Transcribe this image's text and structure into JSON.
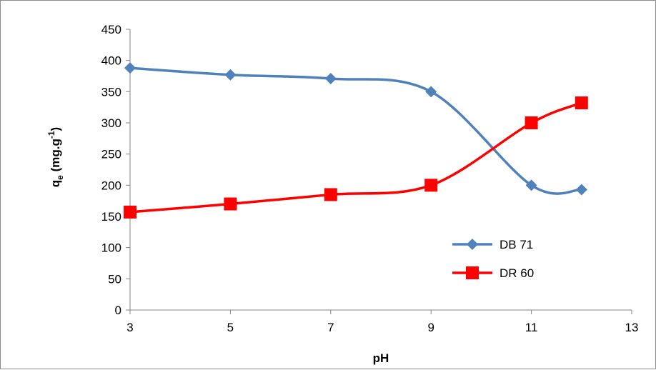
{
  "chart_data": {
    "type": "line",
    "title": "",
    "xlabel": "pH",
    "ylabel": {
      "main": "q",
      "sub": "e",
      "unit_pre": " (mg.g",
      "unit_sup": "-1",
      "unit_post": ")"
    },
    "xlim": [
      3,
      13
    ],
    "ylim": [
      0,
      450
    ],
    "xticks": [
      3,
      5,
      7,
      9,
      11,
      13
    ],
    "yticks": [
      0,
      50,
      100,
      150,
      200,
      250,
      300,
      350,
      400,
      450
    ],
    "grid": false,
    "legend_position": "lower-right",
    "series": [
      {
        "name": "DB 71",
        "color": "#4f81bd",
        "marker": "diamond",
        "smooth": true,
        "x": [
          3,
          5,
          7,
          9,
          11,
          12
        ],
        "y": [
          388,
          377,
          371,
          350,
          200,
          193
        ]
      },
      {
        "name": "DR 60",
        "color": "#ff0000",
        "marker": "square",
        "smooth": true,
        "x": [
          3,
          5,
          7,
          9,
          11,
          12
        ],
        "y": [
          157,
          170,
          185,
          200,
          300,
          332
        ]
      }
    ]
  }
}
